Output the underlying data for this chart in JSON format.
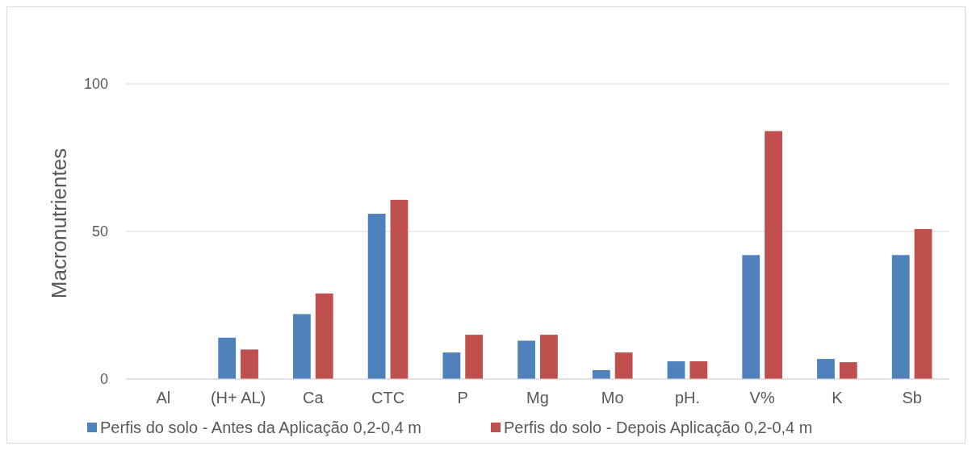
{
  "chart_data": {
    "type": "bar",
    "ylabel": "Macronutrientes",
    "categories": [
      "Al",
      "(H+ AL)",
      "Ca",
      "CTC",
      "P",
      "Mg",
      "Mo",
      "pH.",
      "V%",
      "K",
      "Sb"
    ],
    "series": [
      {
        "name": "Perfis do solo - Antes da Aplicação  0,2-0,4 m",
        "color": "#4f81bd",
        "values": [
          0,
          14,
          22,
          56,
          9,
          13,
          3,
          6,
          42,
          6.8,
          42
        ]
      },
      {
        "name": "Perfis do solo - Depois Aplicação  0,2-0,4 m",
        "color": "#c0504d",
        "values": [
          0,
          10,
          29,
          60.7,
          15,
          15,
          9,
          6,
          84,
          5.7,
          50.8
        ]
      }
    ],
    "ylim": [
      0,
      100
    ],
    "yticks": [
      0,
      50,
      100
    ],
    "grid": "y",
    "legend": "bottom"
  }
}
